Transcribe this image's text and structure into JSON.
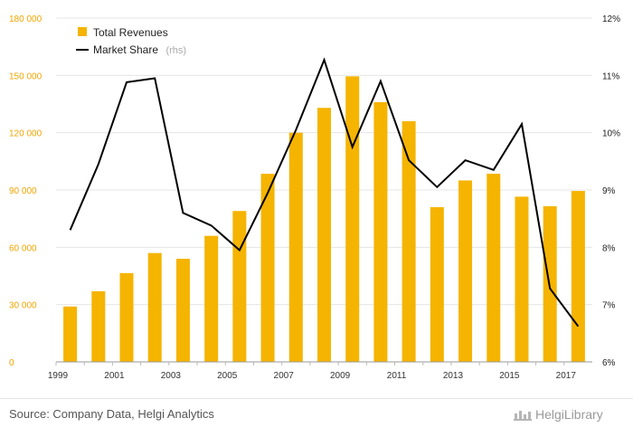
{
  "chart_data": {
    "type": "bar+line",
    "categories": [
      "1999",
      "2000",
      "2001",
      "2002",
      "2003",
      "2004",
      "2005",
      "2006",
      "2007",
      "2008",
      "2009",
      "2010",
      "2011",
      "2012",
      "2013",
      "2014",
      "2015",
      "2016",
      "2017"
    ],
    "x_tick_labels": [
      "1999",
      "2001",
      "2003",
      "2005",
      "2007",
      "2009",
      "2011",
      "2013",
      "2015",
      "2017"
    ],
    "series": [
      {
        "name": "Total Revenues",
        "type": "bar",
        "axis": "left",
        "values": [
          29000,
          37000,
          46500,
          57000,
          54000,
          66000,
          79000,
          98500,
          120000,
          133000,
          149500,
          136000,
          126000,
          81000,
          95000,
          98500,
          86500,
          81500,
          89500
        ]
      },
      {
        "name": "Market Share",
        "type": "line",
        "axis": "right",
        "values": [
          8.3,
          9.45,
          10.88,
          10.95,
          8.6,
          8.38,
          7.95,
          8.95,
          10.05,
          11.27,
          9.75,
          10.9,
          9.52,
          9.05,
          9.52,
          9.35,
          10.15,
          7.28,
          6.62
        ]
      }
    ],
    "y_left": {
      "ylim": [
        0,
        180000
      ],
      "ticks": [
        0,
        30000,
        60000,
        90000,
        120000,
        150000,
        180000
      ],
      "tick_labels": [
        "0",
        "30 000",
        "60 000",
        "90 000",
        "120 000",
        "150 000",
        "180 000"
      ]
    },
    "y_right": {
      "ylim": [
        6,
        12
      ],
      "ticks": [
        6,
        7,
        8,
        9,
        10,
        11,
        12
      ],
      "tick_labels": [
        "6%",
        "7%",
        "8%",
        "9%",
        "10%",
        "11%",
        "12%"
      ]
    },
    "legend": {
      "position": "top-left",
      "items": [
        {
          "label": "Total Revenues",
          "suffix": ""
        },
        {
          "label": "Market Share",
          "suffix": "(rhs)"
        }
      ]
    },
    "colors": {
      "bar": "#f5b400",
      "line": "#000000",
      "grid": "#e4e4e4"
    }
  },
  "footer": {
    "source": "Source: Company Data, Helgi Analytics",
    "brand": "HelgiLibrary"
  }
}
